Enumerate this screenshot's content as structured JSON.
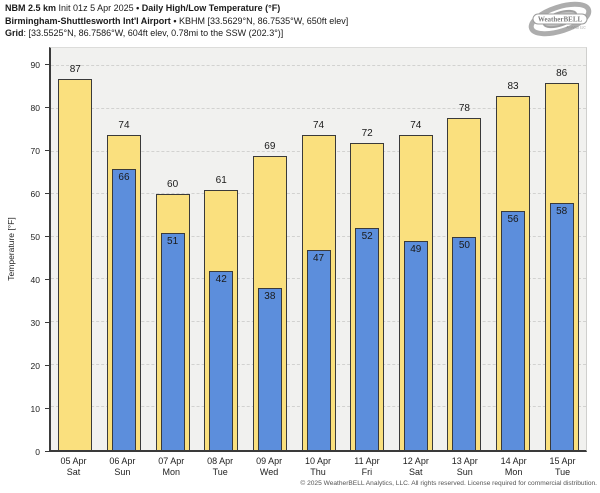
{
  "header": {
    "model": "NBM 2.5 km",
    "init": "Init 01z 5 Apr 2025",
    "sep": "•",
    "product": "Daily High/Low Temperature (°F)",
    "station_name": "Birmingham-Shuttlesworth Int'l Airport",
    "station_info": "KBHM [33.5629°N, 86.7535°W, 650ft elev]",
    "grid_label": "Grid",
    "grid_info": ": [33.5525°N, 86.7586°W, 604ft elev, 0.78mi to the SSW (202.3°)]"
  },
  "logo": {
    "brand": "WeatherBELL",
    "sub": "Analytics LLC"
  },
  "chart_data": {
    "type": "bar",
    "title": "Daily High/Low Temperature (°F)",
    "ylabel": "Temperature [°F]",
    "xlabel": "",
    "ylim": [
      0,
      94.3
    ],
    "yticks": [
      0,
      10,
      20,
      30,
      40,
      50,
      60,
      70,
      80,
      90
    ],
    "grid": "horizontal-dashed",
    "legend_position": "none",
    "categories": [
      {
        "date": "05 Apr",
        "day": "Sat"
      },
      {
        "date": "06 Apr",
        "day": "Sun"
      },
      {
        "date": "07 Apr",
        "day": "Mon"
      },
      {
        "date": "08 Apr",
        "day": "Tue"
      },
      {
        "date": "09 Apr",
        "day": "Wed"
      },
      {
        "date": "10 Apr",
        "day": "Thu"
      },
      {
        "date": "11 Apr",
        "day": "Fri"
      },
      {
        "date": "12 Apr",
        "day": "Sat"
      },
      {
        "date": "13 Apr",
        "day": "Sun"
      },
      {
        "date": "14 Apr",
        "day": "Mon"
      },
      {
        "date": "15 Apr",
        "day": "Tue"
      }
    ],
    "series": [
      {
        "name": "Daily High",
        "color": "#fae07e",
        "values": [
          87,
          74,
          60,
          61,
          69,
          74,
          72,
          74,
          78,
          83,
          86
        ]
      },
      {
        "name": "Daily Low",
        "color": "#5c8edc",
        "values": [
          null,
          66,
          51,
          42,
          38,
          47,
          52,
          49,
          50,
          56,
          58
        ]
      }
    ]
  },
  "footer": {
    "copyright": "© 2025 WeatherBELL Analytics, LLC. All rights reserved. License required for commercial distribution."
  }
}
